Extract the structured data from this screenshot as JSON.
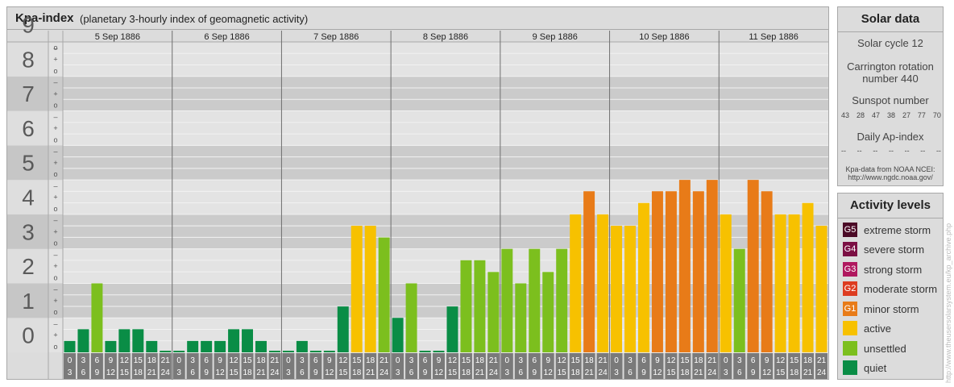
{
  "header": {
    "title": "Kpa-index",
    "subtitle": "(planetary 3-hourly index of geomagnetic activity)"
  },
  "chart_data": {
    "type": "bar",
    "title": "Kpa-index",
    "subtitle": "(planetary 3-hourly index of geomagnetic activity)",
    "ylim": [
      0,
      9
    ],
    "y_ticks": [
      "0",
      "1",
      "2",
      "3",
      "4",
      "5",
      "6",
      "7",
      "8",
      "9"
    ],
    "minor_tick_labels": [
      "o",
      "+",
      "–"
    ],
    "days": [
      "5 Sep 1886",
      "6 Sep 1886",
      "7 Sep 1886",
      "8 Sep 1886",
      "9 Sep 1886",
      "10 Sep 1886",
      "11 Sep 1886"
    ],
    "interval_starts": [
      "0",
      "3",
      "6",
      "9",
      "12",
      "15",
      "18",
      "21"
    ],
    "interval_ends": [
      "3",
      "6",
      "9",
      "12",
      "15",
      "18",
      "21",
      "24"
    ],
    "values": [
      0.33,
      0.67,
      2.0,
      0.33,
      0.67,
      0.67,
      0.33,
      0.0,
      0.0,
      0.33,
      0.33,
      0.33,
      0.67,
      0.67,
      0.33,
      0.0,
      0.0,
      0.33,
      0.0,
      0.0,
      1.33,
      3.67,
      3.67,
      3.33,
      1.0,
      2.0,
      0.0,
      0.0,
      1.33,
      2.67,
      2.67,
      2.33,
      3.0,
      2.0,
      3.0,
      2.33,
      3.0,
      4.0,
      4.67,
      4.0,
      3.67,
      3.67,
      4.33,
      4.67,
      4.67,
      5.0,
      4.67,
      5.0,
      4.0,
      3.0,
      5.0,
      4.67,
      4.0,
      4.0,
      4.33,
      3.67
    ],
    "legend": "right"
  },
  "solar": {
    "title": "Solar data",
    "cycle": "Solar cycle 12",
    "carrington_line1": "Carrington rotation",
    "carrington_line2": "number 440",
    "sunspot_title": "Sunspot number",
    "sunspot_values": [
      "43",
      "28",
      "47",
      "38",
      "27",
      "77",
      "70"
    ],
    "ap_title": "Daily Ap-index",
    "ap_values": [
      "--",
      "--",
      "--",
      "--",
      "--",
      "--",
      "--"
    ],
    "source_line1": "Kpa-data from NOAA NCEI:",
    "source_line2": "http://www.ngdc.noaa.gov/"
  },
  "activity": {
    "title": "Activity levels",
    "levels": [
      {
        "code": "G5",
        "label": "extreme storm",
        "color": "#4b0a26"
      },
      {
        "code": "G4",
        "label": "severe storm",
        "color": "#7b0f43"
      },
      {
        "code": "G3",
        "label": "strong storm",
        "color": "#b0185f"
      },
      {
        "code": "G2",
        "label": "moderate storm",
        "color": "#dd3c20"
      },
      {
        "code": "G1",
        "label": "minor storm",
        "color": "#e87b18"
      },
      {
        "code": "",
        "label": "active",
        "color": "#f7c100"
      },
      {
        "code": "",
        "label": "unsettled",
        "color": "#7cbf1e"
      },
      {
        "code": "",
        "label": "quiet",
        "color": "#0a8d46"
      }
    ]
  },
  "credit": "http://www.theusersolarsystem.eu/kp_archive.php"
}
